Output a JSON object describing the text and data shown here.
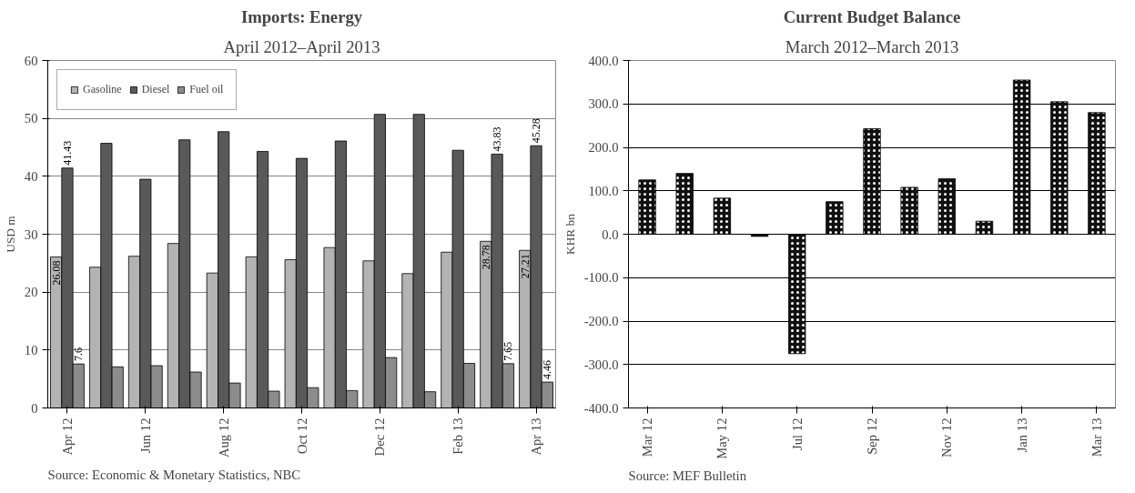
{
  "chart_data": [
    {
      "type": "bar",
      "title": "Imports: Energy",
      "subtitle": "April 2012–April 2013",
      "ylabel": "USD m",
      "categories": [
        "Apr 12",
        null,
        "Jun 12",
        null,
        "Aug 12",
        null,
        "Oct 12",
        null,
        "Dec 12",
        null,
        "Feb 13",
        null,
        "Apr 13"
      ],
      "series": [
        {
          "name": "Gasoline",
          "color": "#b3b3b3",
          "values": [
            26.08,
            24.3,
            26.2,
            28.4,
            23.3,
            26.1,
            25.6,
            27.7,
            25.4,
            23.2,
            26.9,
            28.78,
            27.21
          ],
          "value_labels": [
            "26.08",
            null,
            null,
            null,
            null,
            null,
            null,
            null,
            null,
            null,
            null,
            "28.78",
            "27.21"
          ]
        },
        {
          "name": "Diesel",
          "color": "#595959",
          "values": [
            41.43,
            45.7,
            39.5,
            46.3,
            47.7,
            44.3,
            43.1,
            46.1,
            50.7,
            50.7,
            44.5,
            43.83,
            45.28
          ],
          "value_labels": [
            "41.43",
            null,
            null,
            null,
            null,
            null,
            null,
            null,
            null,
            null,
            null,
            "43.83",
            "45.28"
          ]
        },
        {
          "name": "Fuel oil",
          "color": "#8c8c8c",
          "values": [
            7.6,
            7.1,
            7.3,
            6.2,
            4.3,
            2.9,
            3.5,
            3.0,
            8.7,
            2.8,
            7.7,
            7.65,
            4.46
          ],
          "value_labels": [
            "7.6",
            null,
            null,
            null,
            null,
            null,
            null,
            null,
            null,
            null,
            null,
            "7.65",
            "4.46"
          ]
        }
      ],
      "ylim": [
        0,
        60
      ],
      "yticks": [
        0,
        10,
        20,
        30,
        40,
        50,
        60
      ],
      "grid": "y",
      "legend": "top left",
      "annotations": [
        "Source: Economic & Monetary Statistics, NBC"
      ]
    },
    {
      "type": "bar",
      "title": "Current Budget Balance",
      "subtitle": "March 2012–March 2013",
      "ylabel": "KHR bn",
      "categories": [
        "Mar 12",
        null,
        "May 12",
        null,
        "Jul 12",
        null,
        "Sep 12",
        null,
        "Nov 12",
        null,
        "Jan 13",
        null,
        "Mar 13"
      ],
      "values": [
        125,
        140,
        83,
        -5,
        -275,
        75,
        243,
        108,
        128,
        30,
        355,
        305,
        280
      ],
      "color": "#111111",
      "ylim": [
        -400,
        400
      ],
      "yticks": [
        {
          "value": -400,
          "label": "-400.0"
        },
        {
          "value": -300,
          "label": "-300.0"
        },
        {
          "value": -200,
          "label": "-200.0"
        },
        {
          "value": -100,
          "label": "-100.0"
        },
        {
          "value": 0,
          "label": "0.0"
        },
        {
          "value": 100,
          "label": "100.0"
        },
        {
          "value": 200,
          "label": "200.0"
        },
        {
          "value": 300,
          "label": "300.0"
        },
        {
          "value": 400,
          "label": "400.0"
        }
      ],
      "grid": "y",
      "annotations": [
        "Source: MEF Bulletin"
      ]
    }
  ]
}
